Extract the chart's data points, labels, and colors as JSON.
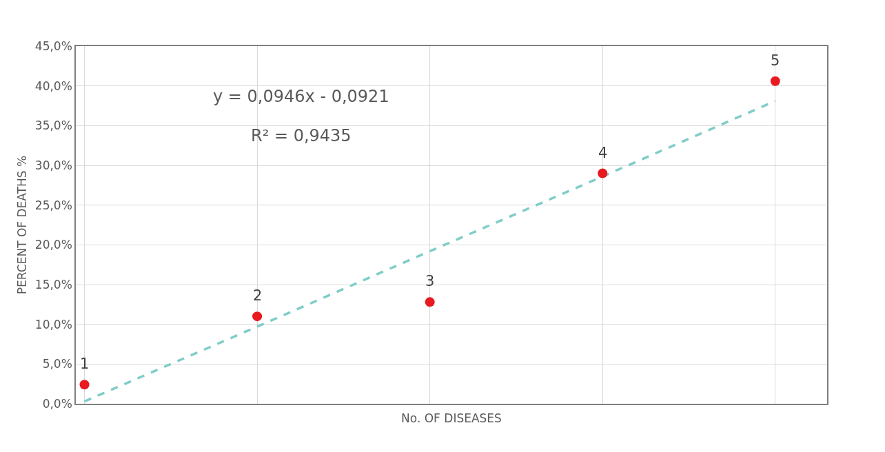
{
  "chart_data": {
    "type": "scatter",
    "xlabel": "No. OF DISEASES",
    "ylabel": "PERCENT OF DEATHS %",
    "categories": [
      null,
      null,
      null,
      null,
      null
    ],
    "series": [
      {
        "type": "line",
        "color": "#7fcdc8",
        "line_style": "dashed",
        "marker": "none",
        "values": [
          0.3,
          9.7,
          19.2,
          28.6,
          38.1
        ]
      },
      {
        "color": "#e8191f",
        "marker": "circle",
        "values": [
          2.4,
          11.0,
          12.8,
          29.0,
          40.6
        ]
      }
    ],
    "ylim": [
      0,
      45
    ],
    "yticks": [
      {
        "value": 0,
        "label": "0,0%"
      },
      {
        "value": 5,
        "label": "5,0%"
      },
      {
        "value": 10,
        "label": "10,0%"
      },
      {
        "value": 15,
        "label": "15,0%"
      },
      {
        "value": 20,
        "label": "20,0%"
      },
      {
        "value": 25,
        "label": "25,0%"
      },
      {
        "value": 30,
        "label": "30,0%"
      },
      {
        "value": 35,
        "label": "35,0%"
      },
      {
        "value": 40,
        "label": "40,0%"
      },
      {
        "value": 45,
        "label": "45,0%"
      }
    ],
    "tick_labels": "y",
    "grid": true,
    "annotations": [
      "y = 0,0946x - 0,0921",
      "R² = 0,9435",
      {
        "text": "1",
        "y": 2.4
      },
      {
        "text": "2",
        "y": 11.0
      },
      {
        "text": "3",
        "y": 12.8
      },
      {
        "text": "4",
        "y": 29.0
      },
      {
        "text": "5",
        "y": 40.6
      }
    ]
  }
}
